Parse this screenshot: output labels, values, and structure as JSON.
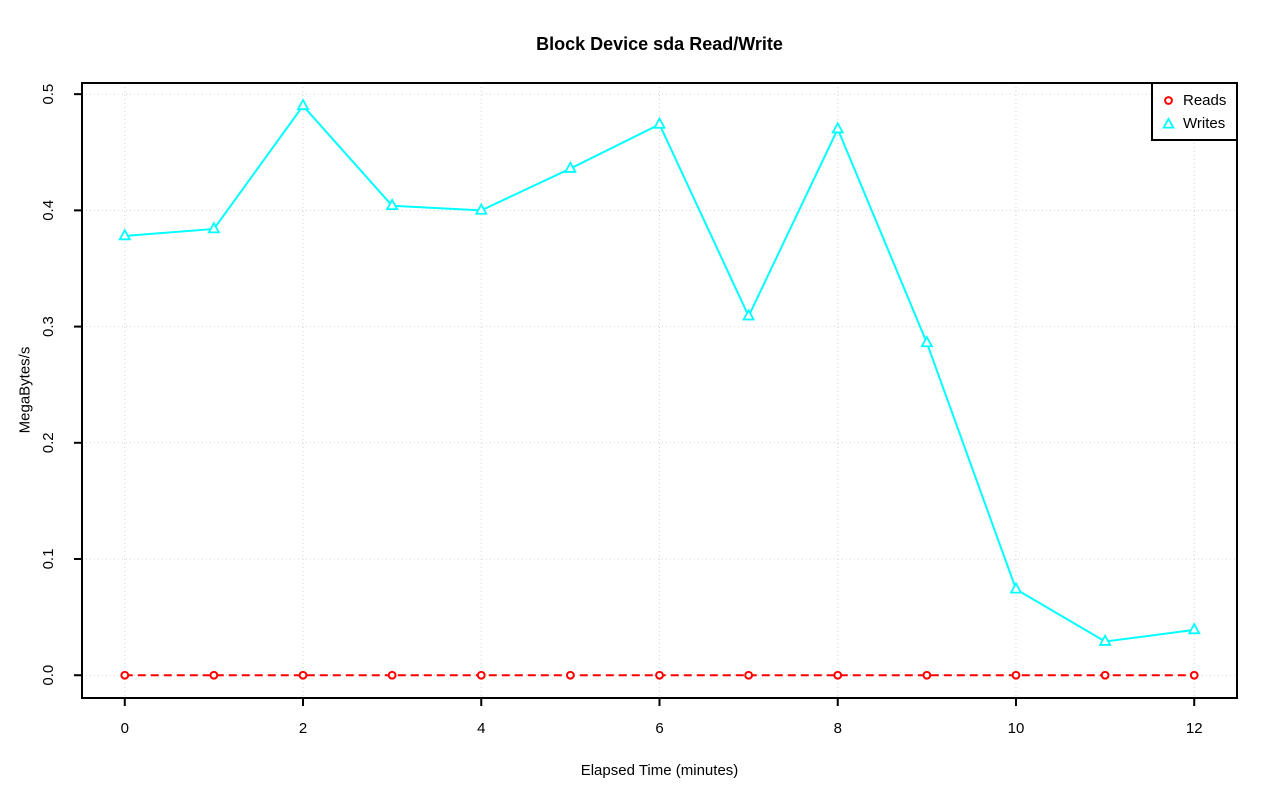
{
  "chart_data": {
    "type": "line",
    "title": "Block Device sda Read/Write",
    "xlabel": "Elapsed Time (minutes)",
    "ylabel": "MegaBytes/s",
    "x": [
      0,
      1,
      2,
      3,
      4,
      5,
      6,
      7,
      8,
      9,
      10,
      11,
      12
    ],
    "x_ticks": [
      0,
      2,
      4,
      6,
      8,
      10,
      12
    ],
    "x_tick_labels": [
      "0",
      "2",
      "4",
      "6",
      "8",
      "10",
      "12"
    ],
    "y_ticks": [
      0,
      0.1,
      0.2,
      0.3,
      0.4,
      0.5
    ],
    "y_tick_labels": [
      "0.0",
      "0.1",
      "0.2",
      "0.3",
      "0.4",
      "0.5"
    ],
    "xlim": [
      0,
      12
    ],
    "ylim": [
      0,
      0.49
    ],
    "grid": true,
    "grid_style": "dotted",
    "legend_position": "topright",
    "series": [
      {
        "name": "Reads",
        "color": "#FF0000",
        "marker": "circle",
        "line_style": "dashed",
        "values": [
          0,
          0,
          0,
          0,
          0,
          0,
          0,
          0,
          0,
          0,
          0,
          0,
          0
        ]
      },
      {
        "name": "Writes",
        "color": "#00FFFF",
        "marker": "triangle",
        "line_style": "solid",
        "values": [
          0.378,
          0.384,
          0.49,
          0.404,
          0.4,
          0.436,
          0.474,
          0.309,
          0.47,
          0.286,
          0.074,
          0.029,
          0.039
        ]
      }
    ],
    "colors": {
      "grid": "#D3D3D3",
      "axis": "#000000",
      "background": "#FFFFFF"
    }
  }
}
